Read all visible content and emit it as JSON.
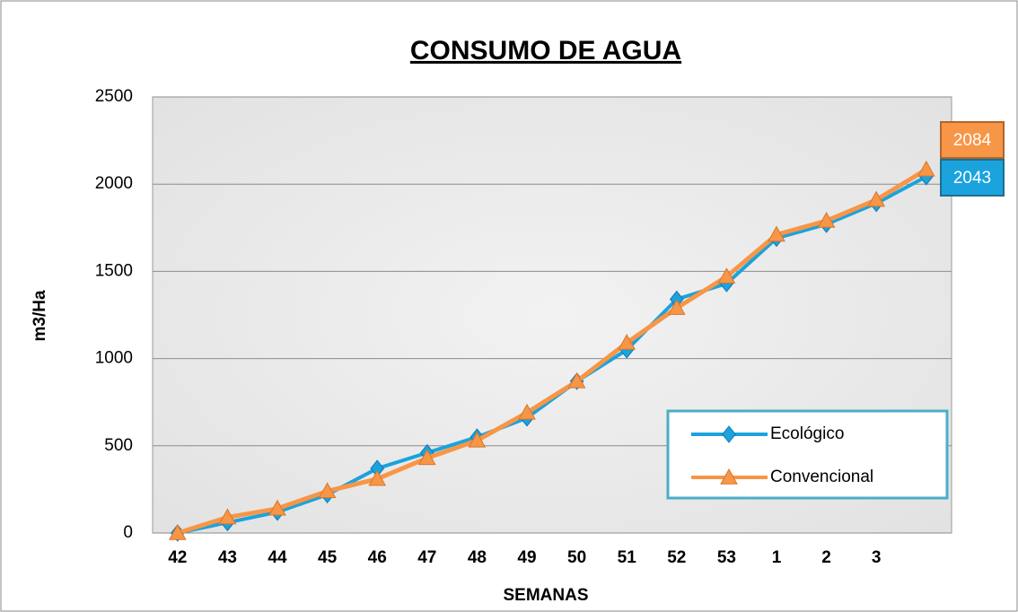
{
  "chart_data": {
    "type": "line",
    "title": "CONSUMO DE AGUA",
    "x_label": "SEMANAS",
    "y_label": "m3/Ha",
    "categories": [
      "42",
      "43",
      "44",
      "45",
      "46",
      "47",
      "48",
      "49",
      "50",
      "51",
      "52",
      "53",
      "1",
      "2",
      "3",
      null
    ],
    "series": [
      {
        "name": "Ecológico",
        "color": "#1aa3dd",
        "marker": "diamond",
        "values": [
          0,
          60,
          120,
          220,
          370,
          460,
          550,
          660,
          870,
          1050,
          1340,
          1430,
          1690,
          1770,
          1890,
          2043
        ]
      },
      {
        "name": "Convencional",
        "color": "#f79646",
        "marker": "triangle",
        "values": [
          0,
          90,
          140,
          240,
          310,
          430,
          530,
          690,
          870,
          1090,
          1290,
          1470,
          1710,
          1790,
          1910,
          2084
        ]
      }
    ],
    "ylim": [
      0,
      2500
    ],
    "yticks": [
      0,
      500,
      1000,
      1500,
      2000,
      2500
    ],
    "grid": true,
    "legend": "lower right"
  }
}
